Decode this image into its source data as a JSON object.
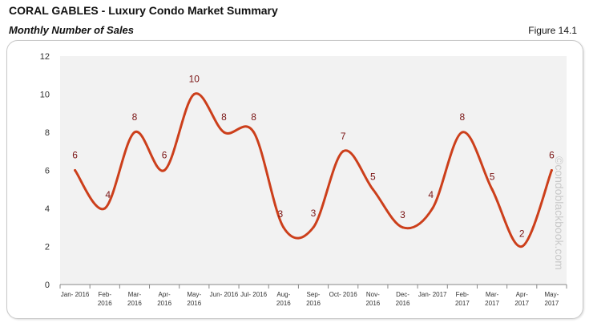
{
  "header": {
    "title": "CORAL GABLES - Luxury Condo Market Summary",
    "subtitle": "Monthly Number of Sales",
    "figure": "Figure 14.1"
  },
  "watermark": "©condoblackbook.com",
  "chart_data": {
    "type": "line",
    "title": "",
    "xlabel": "",
    "ylabel": "",
    "categories": [
      "Jan- 2016",
      "Feb- 2016",
      "Mar- 2016",
      "Apr- 2016",
      "May- 2016",
      "Jun- 2016",
      "Jul- 2016",
      "Aug- 2016",
      "Sep- 2016",
      "Oct- 2016",
      "Nov- 2016",
      "Dec- 2016",
      "Jan- 2017",
      "Feb- 2017",
      "Mar- 2017",
      "Apr- 2017",
      "May- 2017"
    ],
    "values": [
      6,
      4,
      8,
      6,
      10,
      8,
      8,
      3,
      3,
      7,
      5,
      3,
      4,
      8,
      5,
      2,
      6
    ],
    "ylim": [
      0,
      12
    ],
    "yticks": [
      0,
      2,
      4,
      6,
      8,
      10,
      12
    ],
    "smooth": true,
    "grid": false,
    "data_labels": true,
    "colors": {
      "line": "#cc3f1b",
      "labels": "#7a1414",
      "plot_bg": "#f2f2f2"
    }
  }
}
